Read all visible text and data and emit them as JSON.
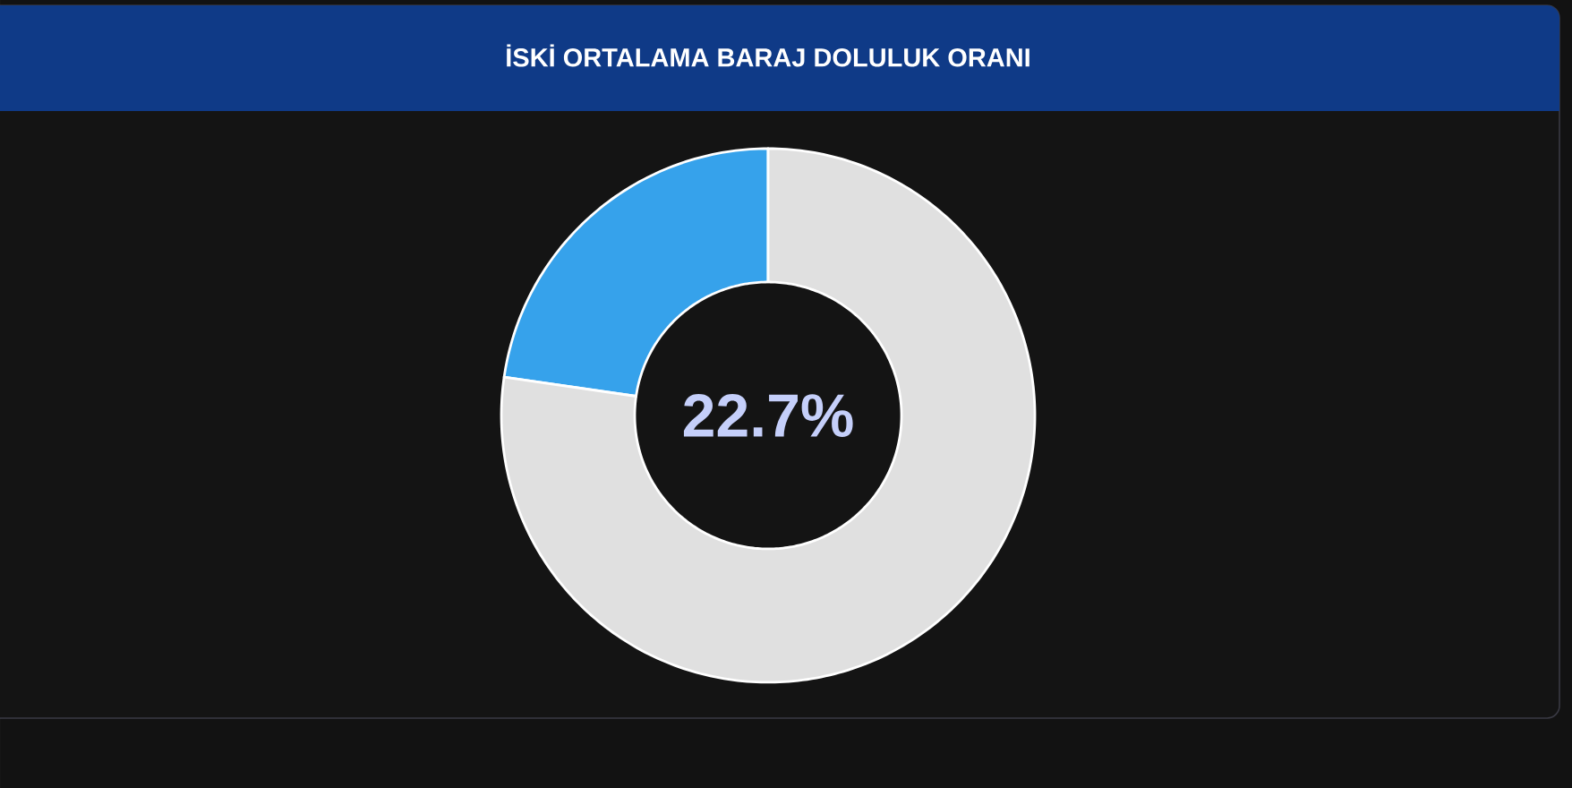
{
  "chart_data": {
    "type": "donut",
    "title": "İSKİ ORTALAMA BARAJ DOLULUK ORANI",
    "categories": [
      null,
      null
    ],
    "values": [
      22.7,
      77.3
    ],
    "colors": [
      "#36a2eb",
      "#e0e0e0"
    ],
    "annotations": [
      "22.7%"
    ]
  }
}
